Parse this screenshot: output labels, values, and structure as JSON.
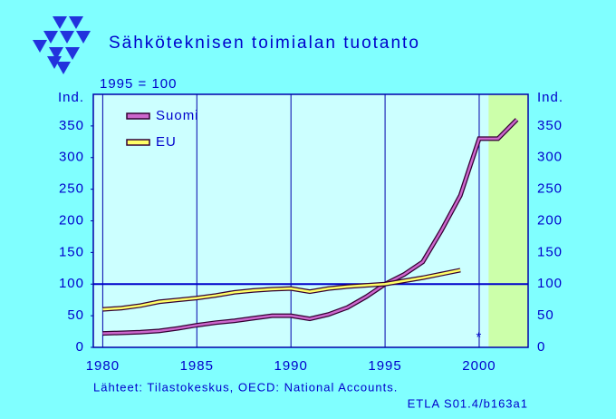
{
  "chart_data": {
    "type": "line",
    "title": "Sähköteknisen  toimialan  tuotanto",
    "subtitle": "1995 = 100",
    "y_label": "Ind.",
    "x": [
      1980,
      1981,
      1982,
      1983,
      1984,
      1985,
      1986,
      1987,
      1988,
      1989,
      1990,
      1991,
      1992,
      1993,
      1994,
      1995,
      1996,
      1997,
      1998,
      1999,
      2000,
      2001,
      2002
    ],
    "series": [
      {
        "name": "Suomi",
        "color": "#cc66cc",
        "values": [
          22,
          23,
          24,
          26,
          30,
          35,
          39,
          42,
          46,
          50,
          50,
          45,
          52,
          63,
          80,
          100,
          115,
          135,
          185,
          240,
          330,
          330,
          360
        ]
      },
      {
        "name": "EU",
        "color": "#ffff66",
        "values": [
          60,
          62,
          66,
          72,
          75,
          78,
          82,
          87,
          90,
          92,
          93,
          88,
          93,
          96,
          98,
          100,
          105,
          110,
          116,
          122,
          null,
          null,
          null
        ]
      }
    ],
    "xlim": [
      1979.5,
      2002.6
    ],
    "ylim": [
      0,
      400
    ],
    "xticks": [
      1980,
      1985,
      1990,
      1995,
      2000
    ],
    "yticks": [
      0,
      50,
      100,
      150,
      200,
      250,
      300,
      350
    ],
    "reference_line": 100,
    "highlight_range": [
      2000.5,
      2002.6
    ],
    "annotation": "*",
    "annotation_at": [
      2000,
      15
    ],
    "source": "Lähteet:   Tilastokeskus, OECD: National Accounts.",
    "code": "ETLA S01.4/b163a1"
  }
}
